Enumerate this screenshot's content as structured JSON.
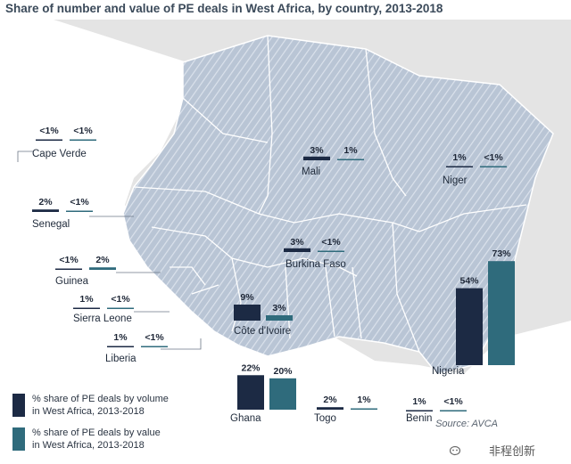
{
  "title": "Share of number and value of PE deals in West Africa, by country, 2013-2018",
  "source": "Source: AVCA",
  "watermark": "非程创新",
  "colors": {
    "volume": "#1c2a44",
    "value": "#2f6b7c",
    "map_fill": "#b8c4d4",
    "map_stripe": "#d6dde8",
    "map_border": "#ffffff",
    "background_land": "#e6e6e6",
    "sea": "#ffffff"
  },
  "legend": [
    {
      "key": "volume",
      "label_line1": "% share of PE deals by volume",
      "label_line2": "in West Africa, 2013-2018"
    },
    {
      "key": "value",
      "label_line1": "% share of PE deals by value",
      "label_line2": "in West Africa, 2013-2018"
    }
  ],
  "chart_data": {
    "type": "bar",
    "title": "Share of number and value of PE deals in West Africa, by country, 2013-2018",
    "unit": "%",
    "series": [
      {
        "name": "% share of PE deals by volume in West Africa, 2013-2018",
        "key": "volume"
      },
      {
        "name": "% share of PE deals by value in West Africa, 2013-2018",
        "key": "value"
      }
    ],
    "countries": [
      {
        "name": "Cape Verde",
        "volume": 0.5,
        "value": 0.5,
        "volume_label": "<1%",
        "value_label": "<1%"
      },
      {
        "name": "Mali",
        "volume": 3,
        "value": 1,
        "volume_label": "3%",
        "value_label": "1%"
      },
      {
        "name": "Niger",
        "volume": 1,
        "value": 0.5,
        "volume_label": "1%",
        "value_label": "<1%"
      },
      {
        "name": "Senegal",
        "volume": 2,
        "value": 0.5,
        "volume_label": "2%",
        "value_label": "<1%"
      },
      {
        "name": "Burkina Faso",
        "volume": 3,
        "value": 0.5,
        "volume_label": "3%",
        "value_label": "<1%"
      },
      {
        "name": "Guinea",
        "volume": 0.5,
        "value": 2,
        "volume_label": "<1%",
        "value_label": "2%"
      },
      {
        "name": "Sierra Leone",
        "volume": 1,
        "value": 0.5,
        "volume_label": "1%",
        "value_label": "<1%"
      },
      {
        "name": "Liberia",
        "volume": 1,
        "value": 0.5,
        "volume_label": "1%",
        "value_label": "<1%"
      },
      {
        "name": "Côte d'Ivoire",
        "volume": 9,
        "value": 3,
        "volume_label": "9%",
        "value_label": "3%"
      },
      {
        "name": "Ghana",
        "volume": 22,
        "value": 20,
        "volume_label": "22%",
        "value_label": "20%"
      },
      {
        "name": "Togo",
        "volume": 2,
        "value": 1,
        "volume_label": "2%",
        "value_label": "1%"
      },
      {
        "name": "Benin",
        "volume": 1,
        "value": 0.5,
        "volume_label": "1%",
        "value_label": "<1%"
      },
      {
        "name": "Nigeria",
        "volume": 54,
        "value": 73,
        "volume_label": "54%",
        "value_label": "73%"
      }
    ]
  }
}
